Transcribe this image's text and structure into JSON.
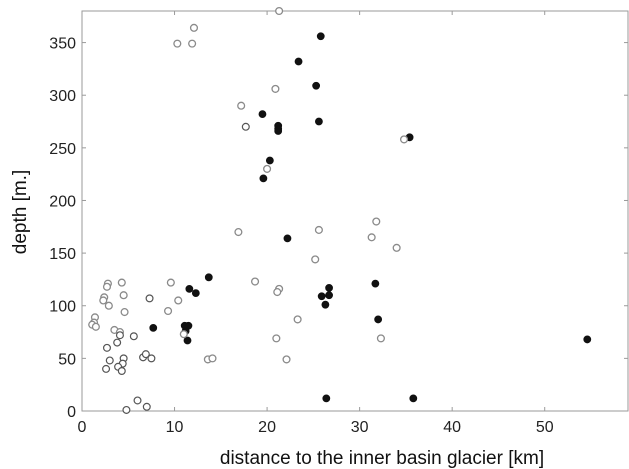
{
  "chart_data": {
    "type": "scatter",
    "xlabel": "distance to the inner basin glacier [km]",
    "ylabel": "depth [m.]",
    "xlim": [
      0,
      59
    ],
    "ylim": [
      0,
      380
    ],
    "x_ticks": [
      0,
      10,
      20,
      30,
      40,
      50
    ],
    "y_ticks": [
      0,
      50,
      100,
      150,
      200,
      250,
      300,
      350
    ],
    "grid": false,
    "legend": "none",
    "colors": {
      "filled": "#111111",
      "open_gray": "#8a8a8a",
      "open_dark": "#555555"
    },
    "series": [
      {
        "marker": "filled",
        "points": [
          [
            25.8,
            356
          ],
          [
            23.4,
            332
          ],
          [
            25.3,
            309
          ],
          [
            19.5,
            282
          ],
          [
            21.2,
            271
          ],
          [
            21.2,
            268
          ],
          [
            21.2,
            266
          ],
          [
            25.6,
            275
          ],
          [
            35.4,
            260
          ],
          [
            20.3,
            238
          ],
          [
            19.6,
            221
          ],
          [
            22.2,
            164
          ],
          [
            13.7,
            127
          ],
          [
            11.6,
            116
          ],
          [
            12.3,
            112
          ],
          [
            7.7,
            79
          ],
          [
            11.1,
            81
          ],
          [
            11.5,
            81
          ],
          [
            11.2,
            76
          ],
          [
            11.4,
            67
          ],
          [
            26.7,
            117
          ],
          [
            26.7,
            110
          ],
          [
            25.9,
            109
          ],
          [
            26.3,
            101
          ],
          [
            31.7,
            121
          ],
          [
            32.0,
            87
          ],
          [
            26.4,
            12
          ],
          [
            35.8,
            12
          ],
          [
            54.6,
            68
          ]
        ]
      },
      {
        "marker": "open_gray",
        "points": [
          [
            21.3,
            380
          ],
          [
            12.1,
            364
          ],
          [
            10.3,
            349
          ],
          [
            11.9,
            349
          ],
          [
            20.9,
            306
          ],
          [
            17.2,
            290
          ],
          [
            34.8,
            258
          ],
          [
            20.0,
            230
          ],
          [
            16.9,
            170
          ],
          [
            25.6,
            172
          ],
          [
            31.8,
            180
          ],
          [
            31.3,
            165
          ],
          [
            34.0,
            155
          ],
          [
            25.2,
            144
          ],
          [
            9.6,
            122
          ],
          [
            10.4,
            105
          ],
          [
            9.3,
            95
          ],
          [
            18.7,
            123
          ],
          [
            21.3,
            116
          ],
          [
            21.1,
            113
          ],
          [
            23.3,
            87
          ],
          [
            11.0,
            73
          ],
          [
            21.0,
            69
          ],
          [
            32.3,
            69
          ],
          [
            13.6,
            49
          ],
          [
            14.1,
            50
          ],
          [
            22.1,
            49
          ],
          [
            2.8,
            121
          ],
          [
            2.7,
            118
          ],
          [
            2.4,
            108
          ],
          [
            2.9,
            100
          ],
          [
            2.3,
            105
          ],
          [
            1.4,
            89
          ],
          [
            1.3,
            84
          ],
          [
            1.1,
            82
          ],
          [
            1.5,
            80
          ],
          [
            4.3,
            122
          ],
          [
            4.5,
            110
          ],
          [
            4.6,
            94
          ],
          [
            3.5,
            77
          ],
          [
            4.1,
            75
          ]
        ]
      },
      {
        "marker": "open_dark",
        "points": [
          [
            17.7,
            270
          ],
          [
            7.3,
            107
          ],
          [
            4.1,
            72
          ],
          [
            5.6,
            71
          ],
          [
            3.8,
            65
          ],
          [
            2.7,
            60
          ],
          [
            6.6,
            51
          ],
          [
            4.5,
            50
          ],
          [
            7.5,
            50
          ],
          [
            6.9,
            54
          ],
          [
            3.0,
            48
          ],
          [
            4.4,
            45
          ],
          [
            3.9,
            42
          ],
          [
            4.3,
            38
          ],
          [
            2.6,
            40
          ],
          [
            6.0,
            10
          ],
          [
            7.0,
            4
          ],
          [
            4.8,
            1
          ]
        ]
      }
    ]
  }
}
